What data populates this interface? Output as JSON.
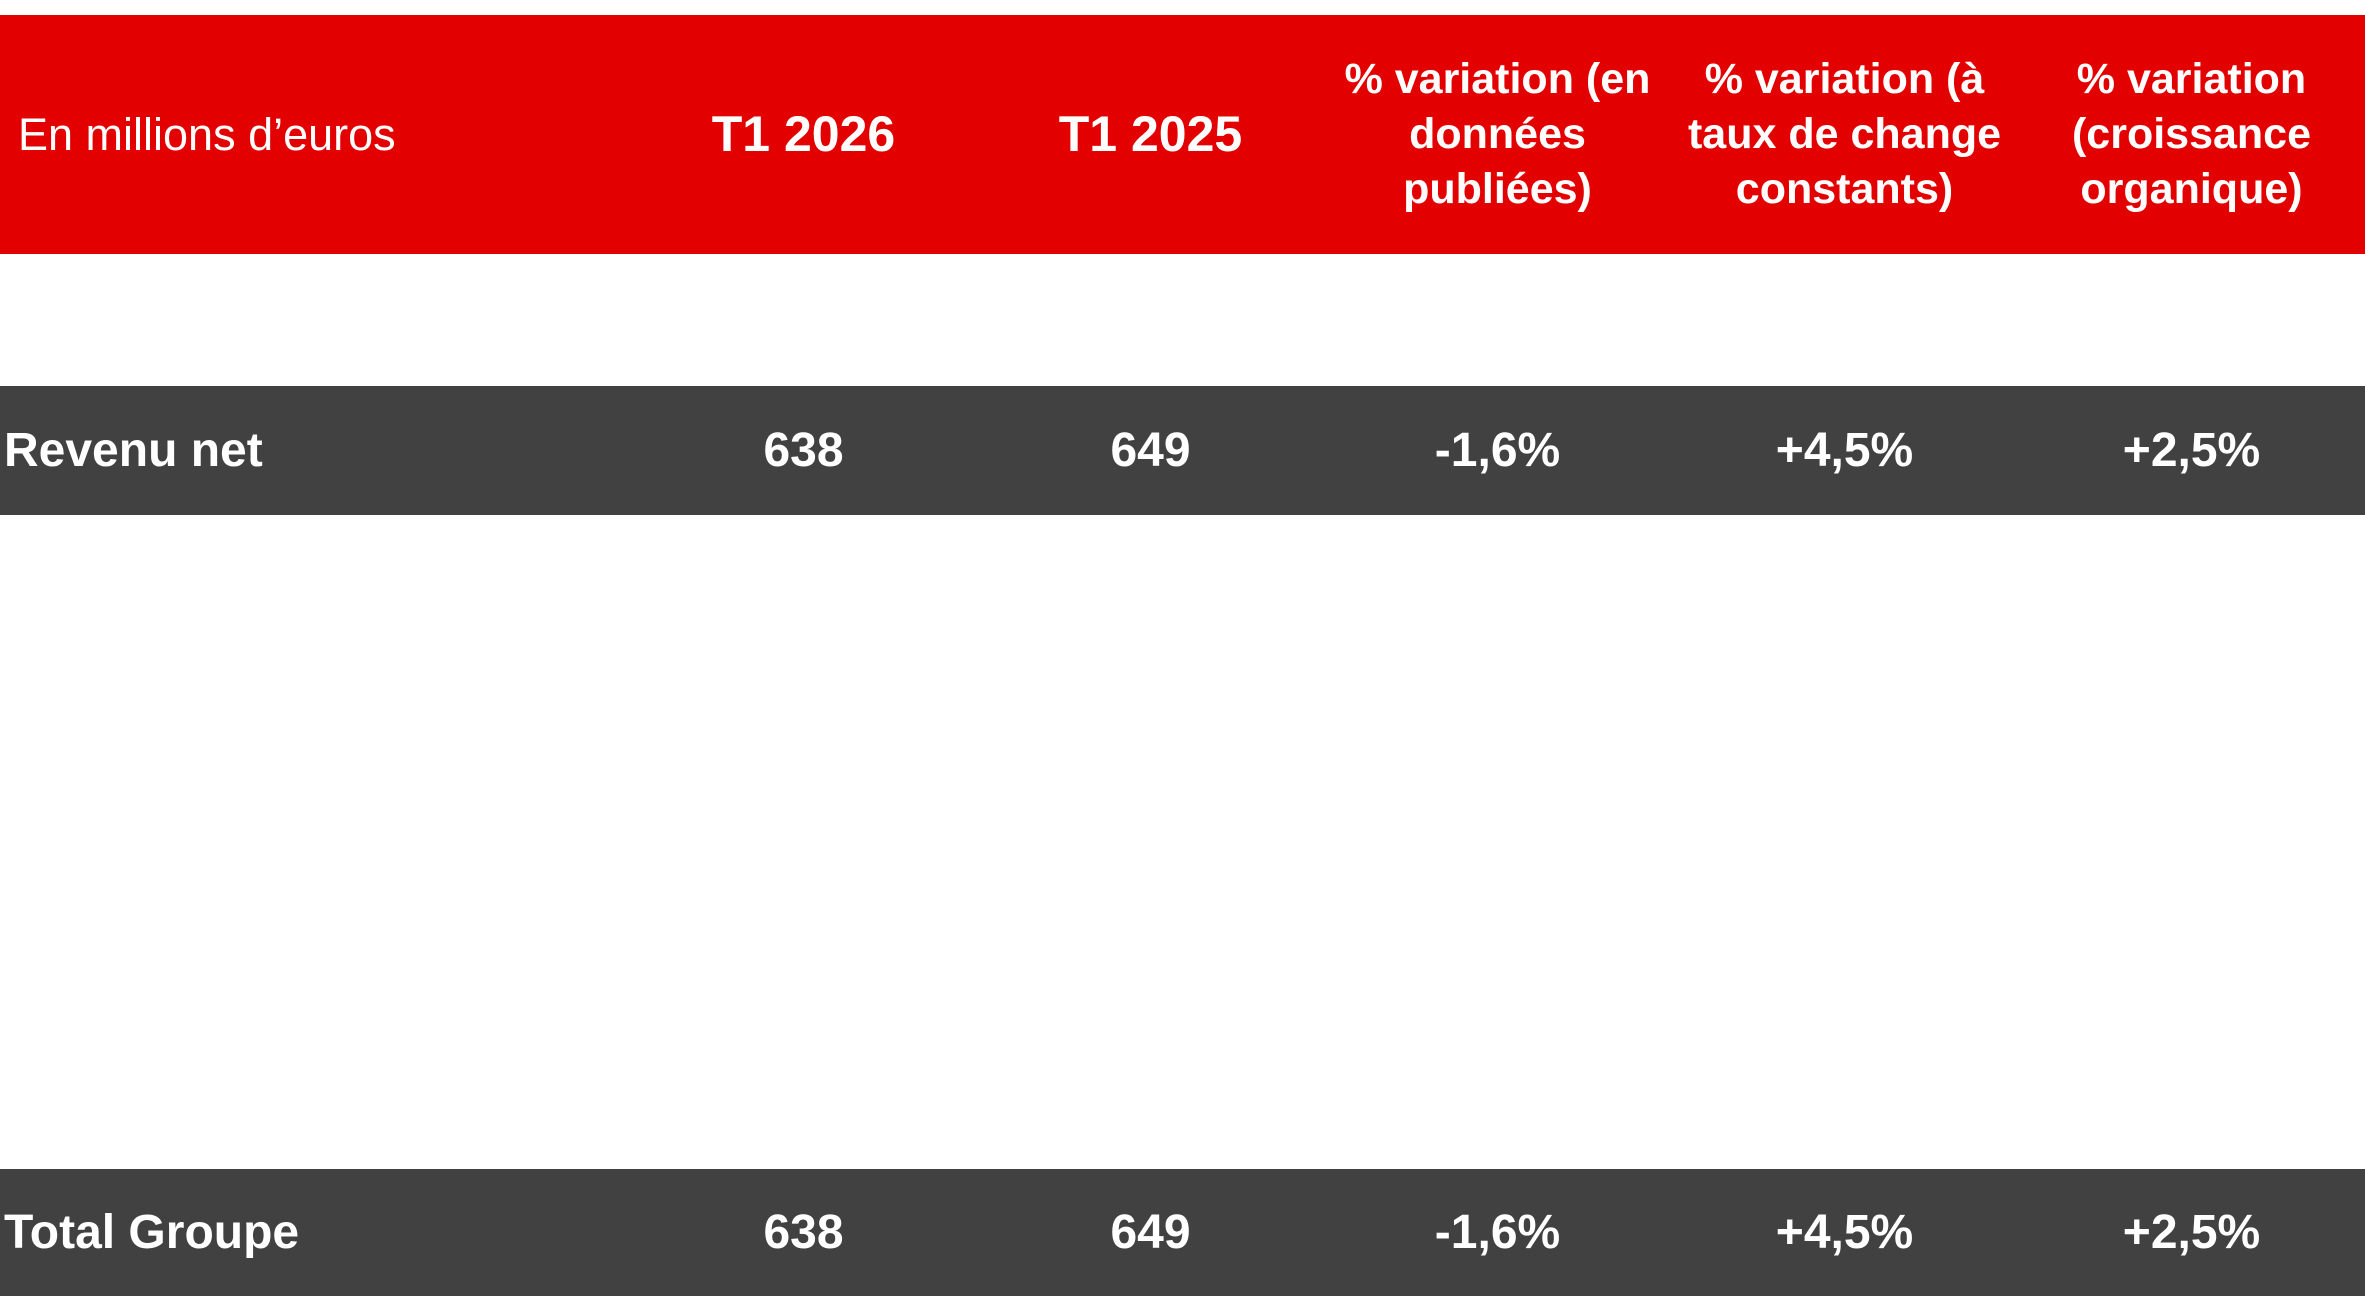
{
  "header": {
    "label": "En millions d’euros",
    "columns": [
      "T1 2026",
      "T1 2025",
      "% variation (en données publiées)",
      "% variation (à taux de change constants)",
      "% variation (croissance organique)"
    ]
  },
  "rows": [
    {
      "label": "Revenu net",
      "values": [
        "638",
        "649",
        "-1,6%",
        "+4,5%",
        "+2,5%"
      ]
    },
    {
      "label": "Total Groupe",
      "values": [
        "638",
        "649",
        "-1,6%",
        "+4,5%",
        "+2,5%"
      ]
    }
  ],
  "colors": {
    "header": "#e30000",
    "row": "#414141"
  }
}
